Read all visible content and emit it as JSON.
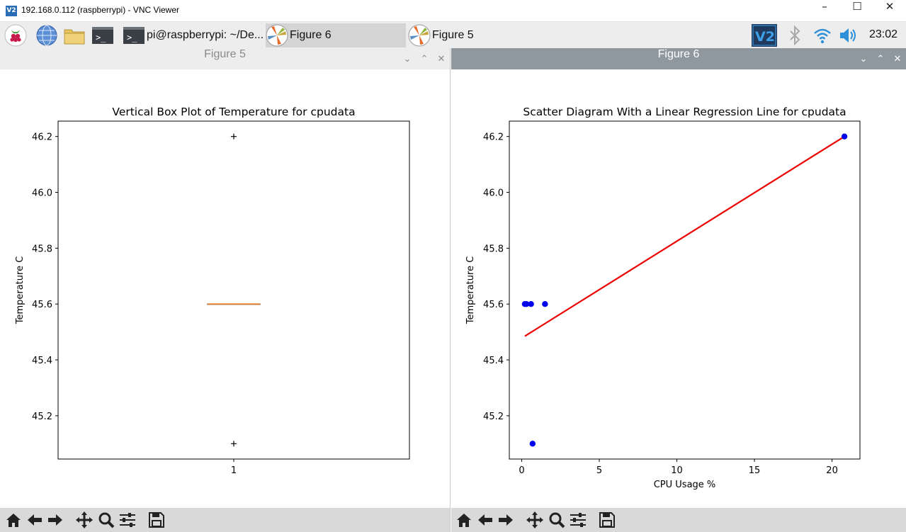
{
  "vnc": {
    "title": "192.168.0.112 (raspberrypi) - VNC Viewer",
    "logo": "V2"
  },
  "taskbar": {
    "tasks": [
      {
        "label": "pi@raspberrypi: ~/De..."
      },
      {
        "label": "Figure 6"
      },
      {
        "label": "Figure 5"
      }
    ],
    "clock": "23:02",
    "vnc_tray_logo": "V2"
  },
  "figure5": {
    "window_title": "Figure 5",
    "chart_data": {
      "type": "box",
      "title": "Vertical Box Plot of Temperature for cpudata",
      "xlabel": "",
      "ylabel": "Temperature C",
      "categories": [
        "1"
      ],
      "ylim": [
        45.045,
        46.255
      ],
      "yticks": [
        45.2,
        45.4,
        45.6,
        45.8,
        46.0,
        46.2
      ],
      "ytick_labels": [
        "45.2",
        "45.4",
        "45.6",
        "45.8",
        "46.0",
        "46.2"
      ],
      "box": {
        "q1": 45.6,
        "median": 45.6,
        "q3": 45.6,
        "whisker_low": 45.6,
        "whisker_high": 45.6
      },
      "outliers": [
        46.2,
        45.1
      ],
      "colors": {
        "median": "#e08030",
        "box": "#000000"
      }
    }
  },
  "figure6": {
    "window_title": "Figure 6",
    "chart_data": {
      "type": "scatter",
      "title": "Scatter Diagram With a Linear Regression Line for cpudata",
      "xlabel": "CPU Usage %",
      "ylabel": "Temperature C",
      "xlim": [
        -0.8,
        21.8
      ],
      "ylim": [
        45.045,
        46.255
      ],
      "xticks": [
        0,
        5,
        10,
        15,
        20
      ],
      "xtick_labels": [
        "0",
        "5",
        "10",
        "15",
        "20"
      ],
      "yticks": [
        45.2,
        45.4,
        45.6,
        45.8,
        46.0,
        46.2
      ],
      "ytick_labels": [
        "45.2",
        "45.4",
        "45.6",
        "45.8",
        "46.0",
        "46.2"
      ],
      "points": [
        {
          "x": 0.2,
          "y": 45.6
        },
        {
          "x": 0.3,
          "y": 45.6
        },
        {
          "x": 0.6,
          "y": 45.6
        },
        {
          "x": 1.5,
          "y": 45.6
        },
        {
          "x": 0.7,
          "y": 45.1
        },
        {
          "x": 20.8,
          "y": 46.2
        }
      ],
      "regression_line": [
        {
          "x": 0.2,
          "y": 45.485
        },
        {
          "x": 20.8,
          "y": 46.2
        }
      ],
      "colors": {
        "points": "#0000ee",
        "line": "#ee0000"
      }
    }
  }
}
